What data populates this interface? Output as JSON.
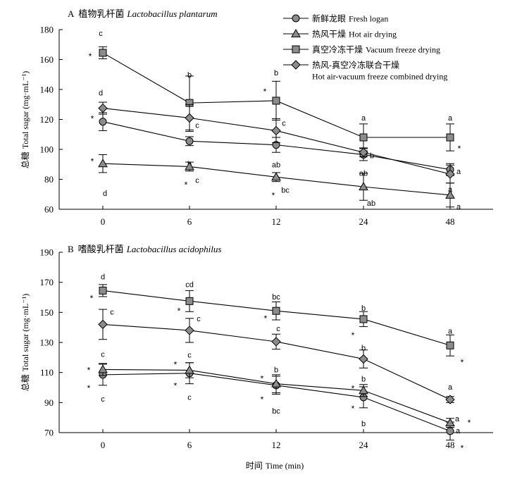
{
  "chart_data": [
    {
      "type": "line",
      "title_prefix": "A",
      "title_cn": "植物乳杆菌",
      "title_latin": "Lactobacillus plantarum",
      "ylabel_cn": "总糖",
      "ylabel": "Total sugar (mg·mL⁻¹)",
      "x": [
        0,
        6,
        12,
        24,
        48
      ],
      "x_tick_labels": [
        "0",
        "6",
        "12",
        "24",
        "48"
      ],
      "ylim": [
        60,
        180
      ],
      "yticks": [
        60,
        80,
        100,
        120,
        140,
        160,
        180
      ],
      "series": [
        {
          "name_cn": "新鲜龙眼",
          "name": "Fresh logan",
          "marker": "circle",
          "values": [
            118.5,
            105.5,
            103,
            96.5,
            86.5
          ],
          "errors": [
            6,
            3,
            5,
            4,
            4
          ],
          "letters": [
            "",
            "b",
            "ab",
            "ab",
            "a"
          ],
          "stars": [
            true,
            false,
            false,
            false,
            false
          ]
        },
        {
          "name_cn": "热风干燥",
          "name": "Hot air drying",
          "marker": "triangle",
          "values": [
            90.5,
            88.5,
            81.5,
            75,
            69.5
          ],
          "errors": [
            6,
            3,
            3,
            9,
            8
          ],
          "letters": [
            "d",
            "c",
            "bc",
            "ab",
            "a"
          ],
          "stars": [
            true,
            true,
            true,
            false,
            false
          ]
        },
        {
          "name_cn": "真空冷冻干燥",
          "name": "Vacuum freeze drying",
          "marker": "square",
          "values": [
            164.5,
            131,
            132.5,
            108,
            108
          ],
          "errors": [
            4,
            18,
            13,
            9,
            9
          ],
          "letters": [
            "c",
            "b",
            "b",
            "a",
            "a"
          ],
          "stars": [
            true,
            false,
            true,
            false,
            true
          ]
        },
        {
          "name_cn": "热风-真空冷冻联合干燥",
          "name": "Hot air-vacuum freeze combined drying",
          "marker": "diamond",
          "values": [
            127.5,
            121,
            112.5,
            98,
            83.5
          ],
          "errors": [
            4,
            9,
            8,
            3,
            6
          ],
          "letters": [
            "d",
            "c",
            "c",
            "b",
            "a"
          ],
          "stars": [
            false,
            false,
            false,
            false,
            false
          ]
        }
      ]
    },
    {
      "type": "line",
      "title_prefix": "B",
      "title_cn": "嗜酸乳杆菌",
      "title_latin": "Lactobacillus acidophilus",
      "ylabel_cn": "总糖",
      "ylabel": "Total sugar (mg·mL⁻¹)",
      "xlabel_cn": "时间",
      "xlabel": "Time (min)",
      "x": [
        0,
        6,
        12,
        24,
        48
      ],
      "x_tick_labels": [
        "0",
        "6",
        "12",
        "24",
        "48"
      ],
      "ylim": [
        70,
        190
      ],
      "yticks": [
        70,
        90,
        110,
        130,
        150,
        170,
        190
      ],
      "series": [
        {
          "name_cn": "新鲜龙眼",
          "name": "Fresh logan",
          "marker": "circle",
          "values": [
            108.5,
            109.5,
            101.5,
            93.5,
            71
          ],
          "errors": [
            7,
            7,
            6,
            7,
            6
          ],
          "letters": [
            "c",
            "c",
            "bc",
            "b",
            "a"
          ],
          "stars": [
            true,
            true,
            true,
            true,
            true
          ]
        },
        {
          "name_cn": "热风干燥",
          "name": "Hot air drying",
          "marker": "triangle",
          "values": [
            112,
            111.5,
            102.5,
            98,
            76.5
          ],
          "errors": [
            4,
            5,
            6,
            4,
            3
          ],
          "letters": [
            "c",
            "c",
            "b",
            "b",
            "a"
          ],
          "stars": [
            true,
            true,
            true,
            true,
            true
          ]
        },
        {
          "name_cn": "真空冷冻干燥",
          "name": "Vacuum freeze drying",
          "marker": "square",
          "values": [
            164.5,
            157.5,
            151,
            145.5,
            128
          ],
          "errors": [
            4,
            7,
            6,
            5,
            7
          ],
          "letters": [
            "d",
            "cd",
            "bc",
            "b",
            "a"
          ],
          "stars": [
            true,
            true,
            true,
            true,
            true
          ]
        },
        {
          "name_cn": "热风-真空冷冻联合干燥",
          "name": "Hot air-vacuum freeze combined drying",
          "marker": "diamond",
          "values": [
            142,
            138,
            130.5,
            119,
            92
          ],
          "errors": [
            10,
            8,
            5,
            6,
            2
          ],
          "letters": [
            "c",
            "c",
            "c",
            "b",
            "a"
          ],
          "stars": [
            false,
            false,
            false,
            false,
            false
          ]
        }
      ]
    }
  ],
  "colors": {
    "marker_fill": "#8c8c8c",
    "line": "#000000",
    "background": "#ffffff"
  }
}
